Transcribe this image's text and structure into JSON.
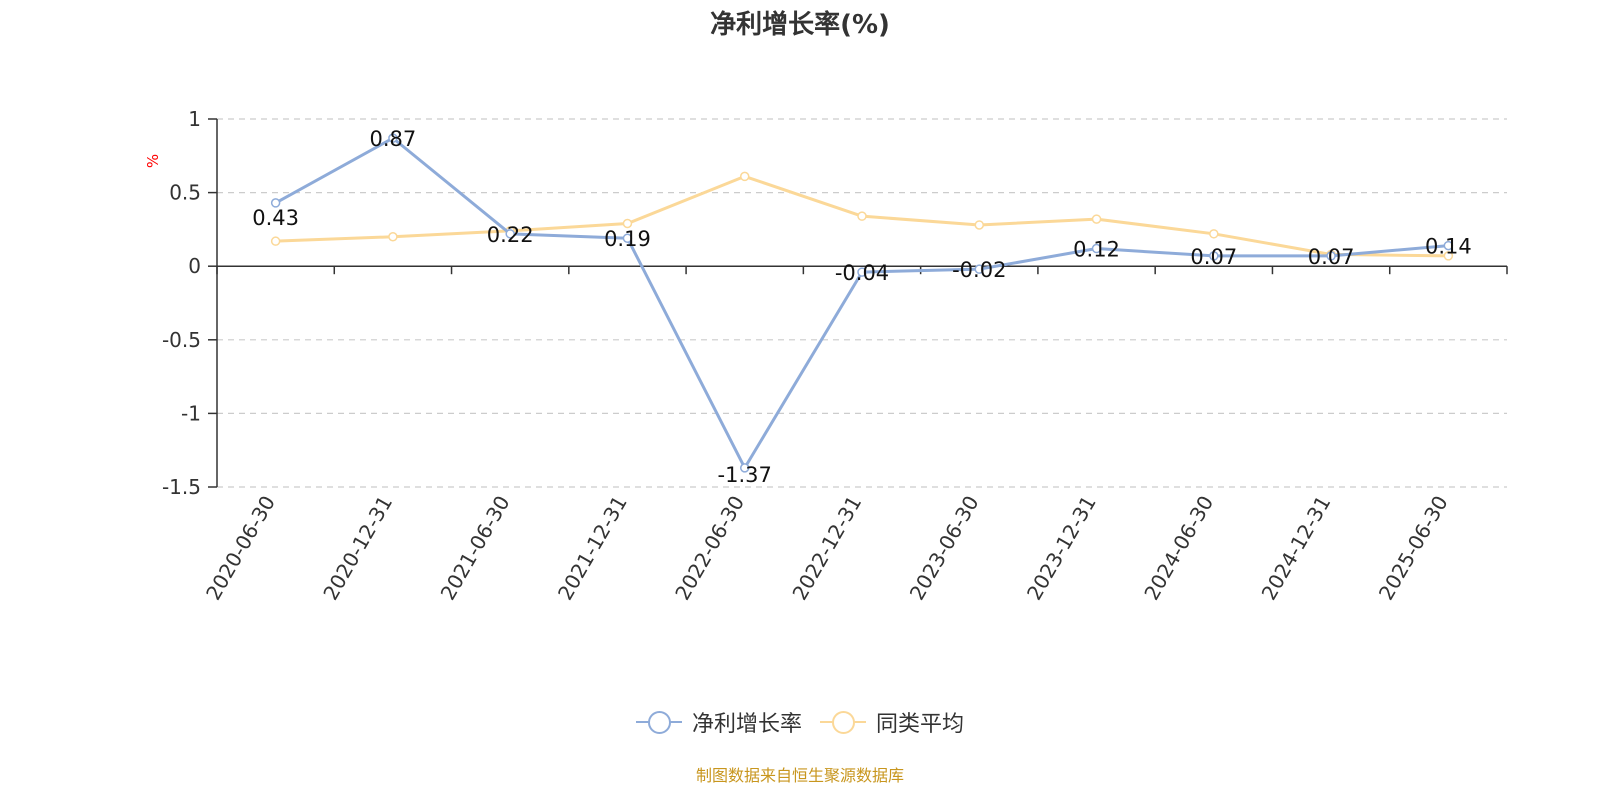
{
  "title": "净利增长率(%)",
  "source_text": "制图数据来自恒生聚源数据库",
  "colors": {
    "series1": "#8eabd9",
    "series2": "#fbd898",
    "axis": "#333333",
    "grid": "#cccccc",
    "ylabel": "#ff0000",
    "source": "#c8961e"
  },
  "chart_data": {
    "type": "line",
    "title": "净利增长率(%)",
    "ylabel": "%",
    "xlabel": "",
    "ylim": [
      -1.5,
      1
    ],
    "yticks": [
      1,
      0.5,
      0,
      -0.5,
      -1,
      -1.5
    ],
    "ytick_labels": [
      "1",
      "0.5",
      "0",
      "-0.5",
      "-1",
      "-1.5"
    ],
    "grid": true,
    "legend_position": "bottom-center",
    "categories": [
      "2020-06-30",
      "2020-12-31",
      "2021-06-30",
      "2021-12-31",
      "2022-06-30",
      "2022-12-31",
      "2023-06-30",
      "2023-12-31",
      "2024-06-30",
      "2024-12-31",
      "2025-06-30"
    ],
    "series": [
      {
        "name": "净利增长率",
        "values": [
          0.43,
          0.87,
          0.22,
          0.19,
          -1.37,
          -0.04,
          -0.02,
          0.12,
          0.07,
          0.07,
          0.14
        ],
        "labels": [
          "0.43",
          "0.87",
          "0.22",
          "0.19",
          "-1.37",
          "-0.04",
          "-0.02",
          "0.12",
          "0.07",
          "0.07",
          "0.14"
        ]
      },
      {
        "name": "同类平均",
        "values": [
          0.17,
          0.2,
          0.24,
          0.29,
          0.61,
          0.34,
          0.28,
          0.32,
          0.22,
          0.08,
          0.07
        ]
      }
    ]
  }
}
